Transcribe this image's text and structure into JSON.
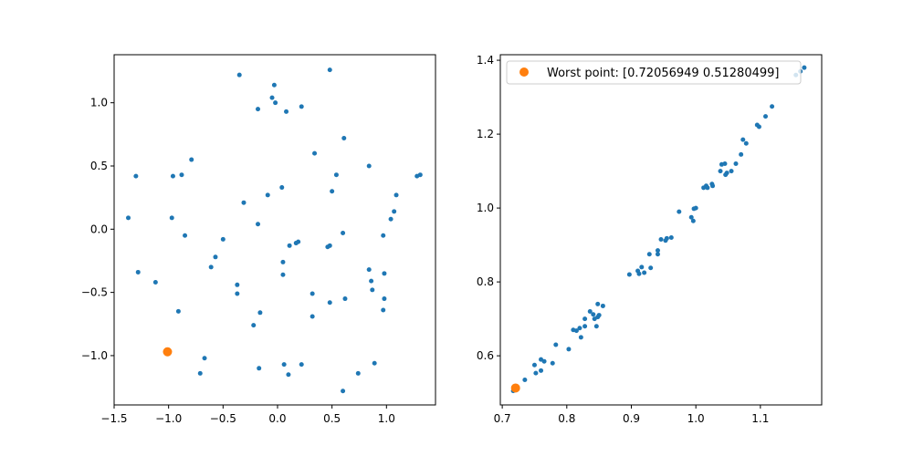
{
  "colors": {
    "points": "#1f77b4",
    "highlight": "#ff7f0e",
    "axes": "#000000",
    "background": "#ffffff"
  },
  "chart_data": [
    {
      "type": "scatter",
      "title": "",
      "xlabel": "",
      "ylabel": "",
      "xlim": [
        -1.5,
        1.45
      ],
      "ylim": [
        -1.39,
        1.38
      ],
      "xticks": [
        -1.5,
        -1.0,
        -0.5,
        0.0,
        0.5,
        1.0
      ],
      "xtick_labels": [
        "−1.5",
        "−1.0",
        "−0.5",
        "0.0",
        "0.5",
        "1.0"
      ],
      "yticks": [
        -1.0,
        -0.5,
        0.0,
        0.5,
        1.0
      ],
      "ytick_labels": [
        "−1.0",
        "−0.5",
        "0.0",
        "0.5",
        "1.0"
      ],
      "grid": false,
      "series": [
        {
          "points": [
            [
              -0.35,
              1.22
            ],
            [
              0.48,
              1.26
            ],
            [
              -0.03,
              1.14
            ],
            [
              -0.05,
              1.04
            ],
            [
              -0.02,
              1.0
            ],
            [
              0.22,
              0.97
            ],
            [
              -0.18,
              0.95
            ],
            [
              0.08,
              0.93
            ],
            [
              0.61,
              0.72
            ],
            [
              0.34,
              0.6
            ],
            [
              -0.79,
              0.55
            ],
            [
              0.84,
              0.5
            ],
            [
              -1.3,
              0.42
            ],
            [
              -0.96,
              0.42
            ],
            [
              -0.88,
              0.43
            ],
            [
              0.54,
              0.43
            ],
            [
              1.28,
              0.42
            ],
            [
              1.31,
              0.43
            ],
            [
              0.04,
              0.33
            ],
            [
              0.5,
              0.3
            ],
            [
              -0.09,
              0.27
            ],
            [
              1.09,
              0.27
            ],
            [
              -0.31,
              0.21
            ],
            [
              1.07,
              0.14
            ],
            [
              -1.37,
              0.09
            ],
            [
              -0.97,
              0.09
            ],
            [
              1.04,
              0.08
            ],
            [
              -0.18,
              0.04
            ],
            [
              0.6,
              -0.03
            ],
            [
              0.97,
              -0.05
            ],
            [
              -0.85,
              -0.05
            ],
            [
              -0.5,
              -0.08
            ],
            [
              0.19,
              -0.1
            ],
            [
              0.17,
              -0.11
            ],
            [
              0.11,
              -0.13
            ],
            [
              0.48,
              -0.13
            ],
            [
              0.46,
              -0.14
            ],
            [
              -0.57,
              -0.22
            ],
            [
              0.05,
              -0.26
            ],
            [
              -0.61,
              -0.3
            ],
            [
              0.84,
              -0.32
            ],
            [
              -1.28,
              -0.34
            ],
            [
              0.98,
              -0.35
            ],
            [
              0.05,
              -0.36
            ],
            [
              0.86,
              -0.41
            ],
            [
              -1.12,
              -0.42
            ],
            [
              -0.37,
              -0.44
            ],
            [
              0.87,
              -0.48
            ],
            [
              -0.37,
              -0.51
            ],
            [
              0.32,
              -0.51
            ],
            [
              0.98,
              -0.55
            ],
            [
              0.62,
              -0.55
            ],
            [
              0.48,
              -0.58
            ],
            [
              0.97,
              -0.64
            ],
            [
              -0.91,
              -0.65
            ],
            [
              -0.16,
              -0.66
            ],
            [
              0.32,
              -0.69
            ],
            [
              -0.22,
              -0.76
            ],
            [
              -0.67,
              -1.02
            ],
            [
              0.89,
              -1.06
            ],
            [
              0.06,
              -1.07
            ],
            [
              0.22,
              -1.07
            ],
            [
              -0.17,
              -1.1
            ],
            [
              0.1,
              -1.15
            ],
            [
              -0.71,
              -1.14
            ],
            [
              0.74,
              -1.14
            ],
            [
              0.6,
              -1.28
            ]
          ]
        },
        {
          "highlight": true,
          "points": [
            [
              -1.01,
              -0.97
            ]
          ]
        }
      ]
    },
    {
      "type": "scatter",
      "title": "",
      "xlabel": "",
      "ylabel": "",
      "xlim": [
        0.697,
        1.195
      ],
      "ylim": [
        0.467,
        1.415
      ],
      "xticks": [
        0.7,
        0.8,
        0.9,
        1.0,
        1.1
      ],
      "xtick_labels": [
        "0.7",
        "0.8",
        "0.9",
        "1.0",
        "1.1"
      ],
      "yticks": [
        0.6,
        0.8,
        1.0,
        1.2,
        1.4
      ],
      "ytick_labels": [
        "0.6",
        "0.8",
        "1.0",
        "1.2",
        "1.4"
      ],
      "grid": false,
      "legend": {
        "position": "top-left",
        "label": "Worst point: [0.72056949 0.51280499]"
      },
      "series": [
        {
          "points": [
            [
              0.717,
              0.505
            ],
            [
              0.735,
              0.535
            ],
            [
              0.752,
              0.553
            ],
            [
              0.76,
              0.56
            ],
            [
              0.75,
              0.575
            ],
            [
              0.76,
              0.59
            ],
            [
              0.765,
              0.585
            ],
            [
              0.778,
              0.58
            ],
            [
              0.783,
              0.63
            ],
            [
              0.803,
              0.618
            ],
            [
              0.81,
              0.67
            ],
            [
              0.815,
              0.668
            ],
            [
              0.82,
              0.675
            ],
            [
              0.822,
              0.65
            ],
            [
              0.828,
              0.68
            ],
            [
              0.828,
              0.7
            ],
            [
              0.836,
              0.72
            ],
            [
              0.841,
              0.712
            ],
            [
              0.843,
              0.7
            ],
            [
              0.846,
              0.68
            ],
            [
              0.848,
              0.705
            ],
            [
              0.85,
              0.71
            ],
            [
              0.848,
              0.74
            ],
            [
              0.856,
              0.735
            ],
            [
              0.897,
              0.82
            ],
            [
              0.91,
              0.83
            ],
            [
              0.912,
              0.822
            ],
            [
              0.916,
              0.84
            ],
            [
              0.92,
              0.825
            ],
            [
              0.928,
              0.875
            ],
            [
              0.93,
              0.838
            ],
            [
              0.941,
              0.885
            ],
            [
              0.941,
              0.875
            ],
            [
              0.946,
              0.915
            ],
            [
              0.953,
              0.912
            ],
            [
              0.955,
              0.918
            ],
            [
              0.962,
              0.92
            ],
            [
              0.974,
              0.99
            ],
            [
              0.993,
              0.975
            ],
            [
              0.996,
              0.965
            ],
            [
              0.997,
              0.998
            ],
            [
              1.0,
              1.0
            ],
            [
              1.012,
              1.055
            ],
            [
              1.016,
              1.06
            ],
            [
              1.018,
              1.055
            ],
            [
              1.025,
              1.065
            ],
            [
              1.026,
              1.06
            ],
            [
              1.038,
              1.1
            ],
            [
              1.04,
              1.118
            ],
            [
              1.045,
              1.12
            ],
            [
              1.046,
              1.09
            ],
            [
              1.048,
              1.095
            ],
            [
              1.055,
              1.1
            ],
            [
              1.062,
              1.12
            ],
            [
              1.07,
              1.145
            ],
            [
              1.073,
              1.185
            ],
            [
              1.078,
              1.175
            ],
            [
              1.095,
              1.225
            ],
            [
              1.098,
              1.22
            ],
            [
              1.108,
              1.248
            ],
            [
              1.118,
              1.275
            ],
            [
              1.155,
              1.36
            ],
            [
              1.162,
              1.37
            ],
            [
              1.168,
              1.38
            ]
          ]
        },
        {
          "highlight": true,
          "name": "Worst point: [0.72056949 0.51280499]",
          "points": [
            [
              0.7206,
              0.5128
            ]
          ]
        }
      ]
    }
  ]
}
